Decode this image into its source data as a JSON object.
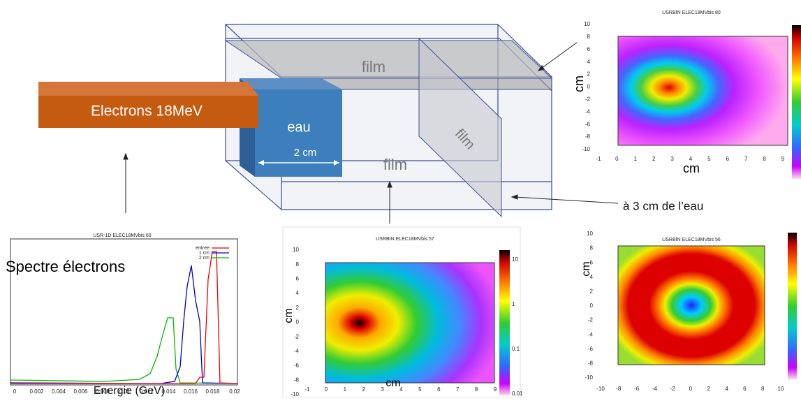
{
  "diagram": {
    "source_label": "Electrons 18MeV",
    "water_label": "eau",
    "water_width": "2 cm",
    "film_labels": [
      "film",
      "film",
      "film"
    ],
    "distance_note": "à 3 cm de l’eau"
  },
  "plots": [
    {
      "title": "USR-1D ELEC18MVbis 60",
      "overlay": "Spectre électrons",
      "xlabel": "Energie (GeV)",
      "xticks": [
        "0",
        "0.002",
        "0.004",
        "0.006",
        "0.008",
        "0.01",
        "0.012",
        "0.014",
        "0.016",
        "0.018",
        "0.02"
      ],
      "legend": [
        "entree",
        "1 cm",
        "2 cm"
      ]
    },
    {
      "title": "USRBIN ELEC18MVbis 57",
      "xlabel": "cm",
      "ylabel": "cm",
      "xticks": [
        "-1",
        "0",
        "1",
        "2",
        "3",
        "4",
        "5",
        "6",
        "7",
        "8",
        "9"
      ],
      "yticks": [
        "10",
        "8",
        "6",
        "4",
        "2",
        "0",
        "-2",
        "-4",
        "-6",
        "-8",
        "-10"
      ],
      "colorbar": [
        "10",
        "1",
        "0.1",
        "0.01"
      ]
    },
    {
      "title": "USRBIN ELEC18MVbis 80",
      "xlabel": "cm",
      "ylabel": "cm",
      "xticks": [
        "-1",
        "0",
        "1",
        "2",
        "3",
        "4",
        "5",
        "6",
        "7",
        "8",
        "9"
      ],
      "yticks": [
        "10",
        "8",
        "6",
        "4",
        "2",
        "0",
        "-2",
        "-4",
        "-6",
        "-8",
        "-10"
      ]
    },
    {
      "title": "USRBIN ELEC18MVbis 56",
      "xlabel": "cm",
      "ylabel": "cm",
      "xticks": [
        "-10",
        "-8",
        "-6",
        "-4",
        "-2",
        "0",
        "2",
        "4",
        "6",
        "8",
        "10"
      ],
      "yticks": [
        "10",
        "8",
        "6",
        "4",
        "2",
        "0",
        "-2",
        "-4",
        "-6",
        "-8",
        "-10"
      ]
    }
  ]
}
